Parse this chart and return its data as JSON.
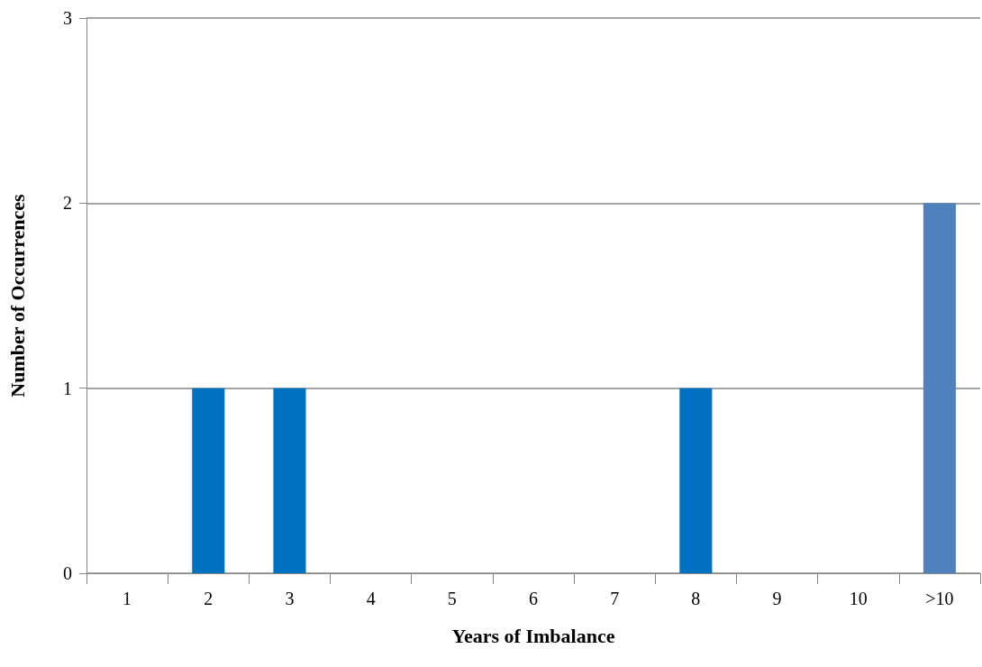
{
  "chart_data": {
    "type": "bar",
    "xlabel": "Years of Imbalance",
    "ylabel": "Number of Occurrences",
    "categories": [
      "1",
      "2",
      "3",
      "4",
      "5",
      "6",
      "7",
      "8",
      "9",
      "10",
      ">10"
    ],
    "values": [
      0,
      1,
      1,
      0,
      0,
      0,
      0,
      1,
      0,
      0,
      2
    ],
    "colors": [
      "#0070c0",
      "#0070c0",
      "#0070c0",
      "#0070c0",
      "#0070c0",
      "#0070c0",
      "#0070c0",
      "#0070c0",
      "#0070c0",
      "#0070c0",
      "#4f81bd"
    ],
    "ylim": [
      0,
      3
    ],
    "yticks": [
      0,
      1,
      2,
      3
    ],
    "grid": "y"
  }
}
